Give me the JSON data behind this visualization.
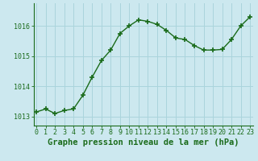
{
  "x": [
    0,
    1,
    2,
    3,
    4,
    5,
    6,
    7,
    8,
    9,
    10,
    11,
    12,
    13,
    14,
    15,
    16,
    17,
    18,
    19,
    20,
    21,
    22,
    23
  ],
  "y": [
    1013.15,
    1013.25,
    1013.1,
    1013.2,
    1013.25,
    1013.7,
    1014.3,
    1014.85,
    1015.2,
    1015.75,
    1016.0,
    1016.2,
    1016.15,
    1016.05,
    1015.85,
    1015.6,
    1015.55,
    1015.35,
    1015.2,
    1015.2,
    1015.22,
    1015.55,
    1016.0,
    1016.3
  ],
  "line_color": "#1a6b1a",
  "marker_color": "#1a6b1a",
  "bg_color": "#cce8ef",
  "grid_color": "#aad4dc",
  "axis_color": "#1a6b1a",
  "xlabel": "Graphe pression niveau de la mer (hPa)",
  "xlabel_fontsize": 7.5,
  "tick_fontsize": 6,
  "ylim": [
    1012.7,
    1016.75
  ],
  "yticks": [
    1013,
    1014,
    1015,
    1016
  ],
  "xlim": [
    -0.3,
    23.3
  ],
  "xticks": [
    0,
    1,
    2,
    3,
    4,
    5,
    6,
    7,
    8,
    9,
    10,
    11,
    12,
    13,
    14,
    15,
    16,
    17,
    18,
    19,
    20,
    21,
    22,
    23
  ]
}
